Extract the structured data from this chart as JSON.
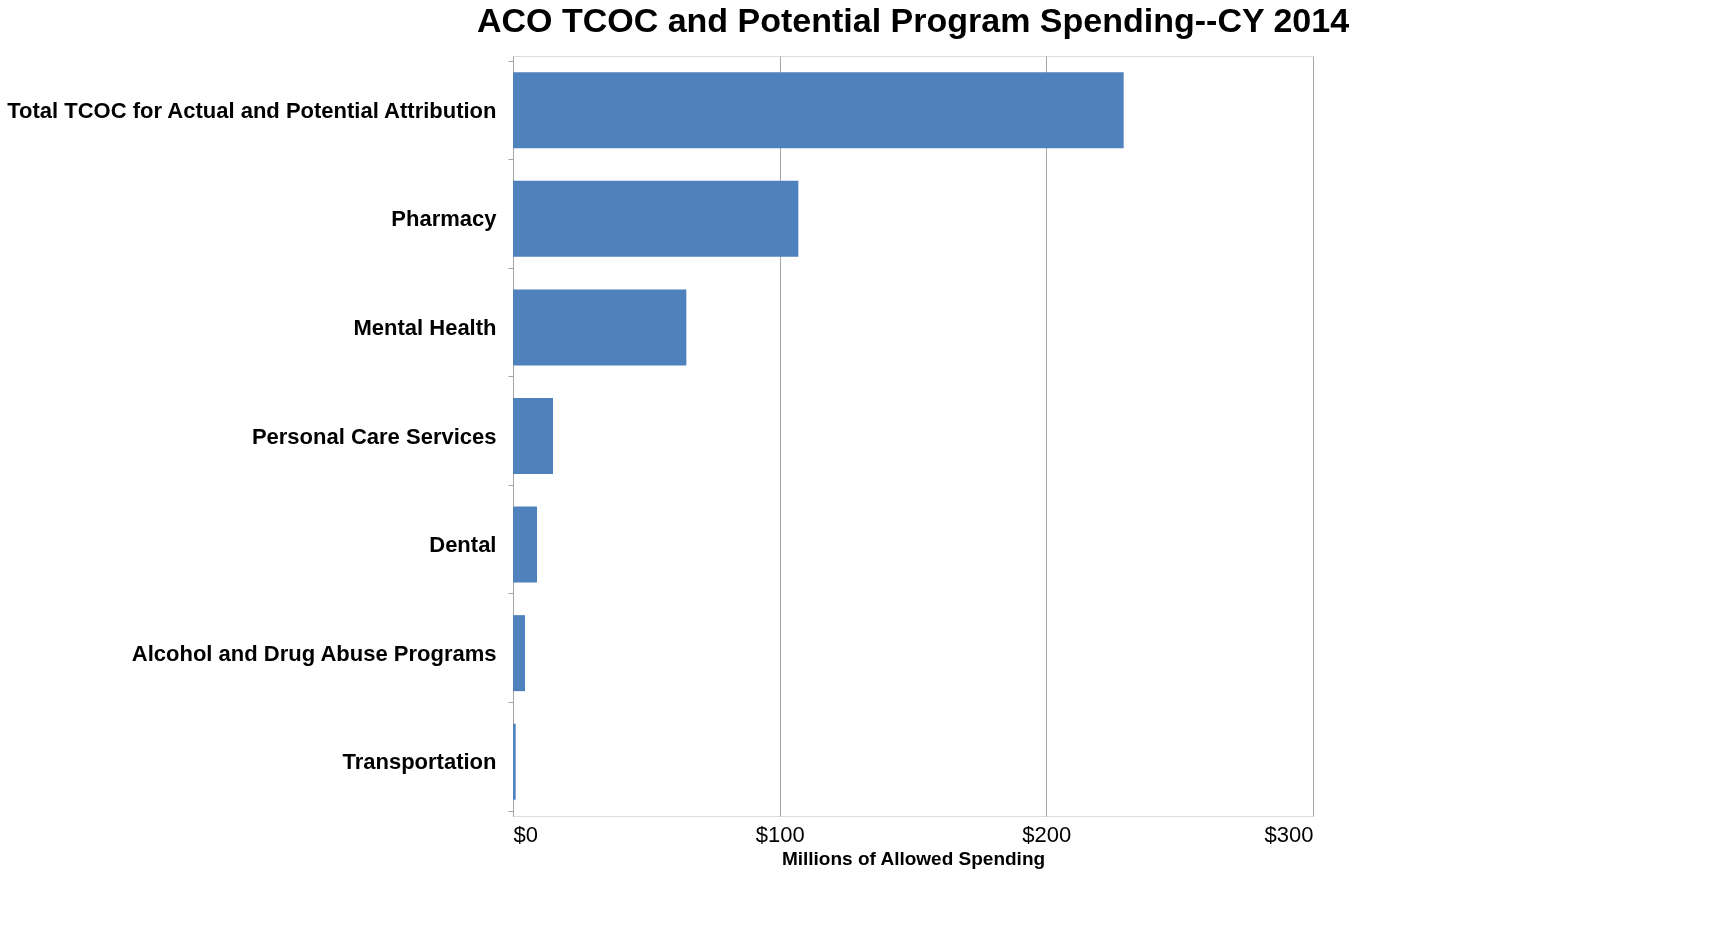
{
  "chart_data": {
    "type": "bar",
    "orientation": "horizontal",
    "title": "ACO TCOC and Potential Program Spending--CY 2014",
    "xlabel": "Millions of Allowed Spending",
    "categories": [
      "Total TCOC for Actual and Potential Attribution",
      "Pharmacy",
      "Mental Health",
      "Personal Care Services",
      "Dental",
      "Alcohol and Drug Abuse Programs",
      "Transportation"
    ],
    "values": [
      229,
      107,
      65,
      15,
      9,
      4.5,
      1
    ],
    "color": "#4f81bd",
    "xlim": [
      0,
      300
    ],
    "xticks": [
      {
        "value": 0,
        "label": "$0"
      },
      {
        "value": 100,
        "label": "$100"
      },
      {
        "value": 200,
        "label": "$200"
      },
      {
        "value": 300,
        "label": "$300"
      }
    ],
    "grid": "x",
    "legend": false
  }
}
